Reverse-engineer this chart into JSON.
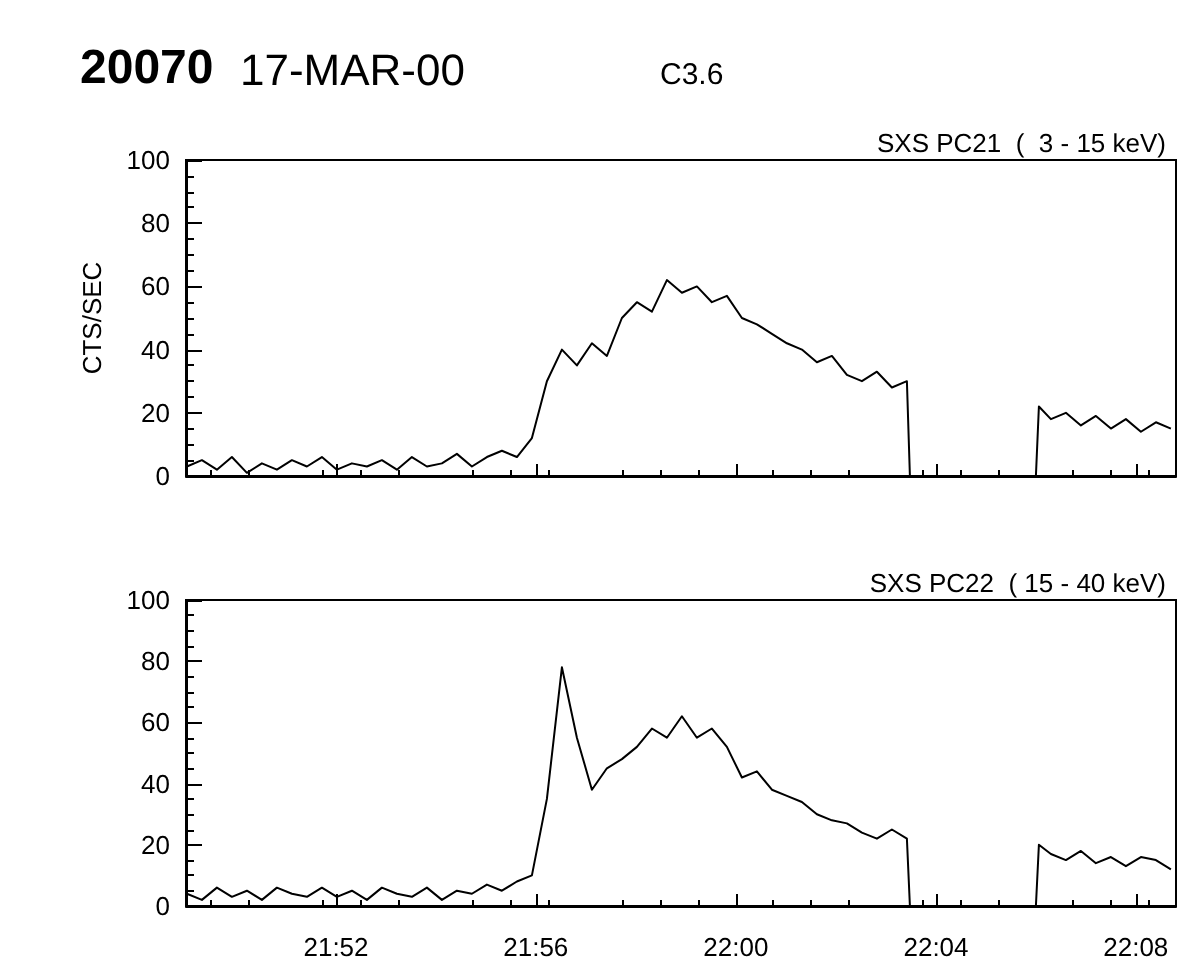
{
  "chart_data": [
    {
      "type": "line",
      "title": "SXS PC21  (  3 - 15 keV)",
      "ylabel": "CTS/SEC",
      "annotations": [
        "20070",
        "17-MAR-00",
        "C3.6"
      ],
      "tick_labels": "y",
      "grid": false,
      "marker": "none",
      "line_style": "solid",
      "x": [
        21.817,
        21.822,
        21.827,
        21.832,
        21.837,
        21.842,
        21.847,
        21.852,
        21.857,
        21.862,
        21.867,
        21.872,
        21.877,
        21.882,
        21.887,
        21.892,
        21.897,
        21.902,
        21.907,
        21.912,
        21.917,
        21.922,
        21.927,
        21.932,
        21.937,
        21.942,
        21.947,
        21.952,
        21.957,
        21.962,
        21.967,
        21.972,
        21.977,
        21.982,
        21.987,
        21.992,
        21.997,
        22.002,
        22.007,
        22.012,
        22.017,
        22.022,
        22.027,
        22.032,
        22.037,
        22.042,
        22.047,
        22.052,
        22.057,
        22.058,
        22.08,
        22.1,
        22.101,
        22.105,
        22.11,
        22.115,
        22.12,
        22.125,
        22.13,
        22.135,
        22.14,
        22.145
      ],
      "series": [
        {
          "color": "#000000",
          "values": [
            3,
            5,
            2,
            6,
            1,
            4,
            2,
            5,
            3,
            6,
            2,
            4,
            3,
            5,
            2,
            6,
            3,
            4,
            7,
            3,
            6,
            8,
            6,
            12,
            30,
            40,
            35,
            42,
            38,
            50,
            55,
            52,
            62,
            58,
            60,
            55,
            57,
            50,
            48,
            45,
            42,
            40,
            36,
            38,
            32,
            30,
            33,
            28,
            30,
            0,
            null,
            0,
            22,
            18,
            20,
            16,
            19,
            15,
            18,
            14,
            17,
            15
          ]
        }
      ],
      "xlim": [
        21.8167,
        22.1467
      ],
      "xticks": [
        {
          "value": 21.8667,
          "label": null
        },
        {
          "value": 21.9333,
          "label": null
        },
        {
          "value": 22,
          "label": null
        },
        {
          "value": 22.0667,
          "label": null
        },
        {
          "value": 22.1333,
          "label": null
        }
      ],
      "ylim": [
        0,
        100
      ],
      "yticks": [
        0,
        20,
        40,
        60,
        80,
        100
      ]
    },
    {
      "type": "line",
      "title": "SXS PC22  ( 15 - 40 keV)",
      "grid": false,
      "marker": "none",
      "line_style": "solid",
      "x": [
        21.817,
        21.822,
        21.827,
        21.832,
        21.837,
        21.842,
        21.847,
        21.852,
        21.857,
        21.862,
        21.867,
        21.872,
        21.877,
        21.882,
        21.887,
        21.892,
        21.897,
        21.902,
        21.907,
        21.912,
        21.917,
        21.922,
        21.927,
        21.932,
        21.937,
        21.942,
        21.947,
        21.952,
        21.957,
        21.962,
        21.967,
        21.972,
        21.977,
        21.982,
        21.987,
        21.992,
        21.997,
        22.002,
        22.007,
        22.012,
        22.017,
        22.022,
        22.027,
        22.032,
        22.037,
        22.042,
        22.047,
        22.052,
        22.057,
        22.058,
        22.08,
        22.1,
        22.101,
        22.105,
        22.11,
        22.115,
        22.12,
        22.125,
        22.13,
        22.135,
        22.14,
        22.145
      ],
      "series": [
        {
          "color": "#000000",
          "values": [
            4,
            2,
            6,
            3,
            5,
            2,
            6,
            4,
            3,
            6,
            3,
            5,
            2,
            6,
            4,
            3,
            6,
            2,
            5,
            4,
            7,
            5,
            8,
            10,
            35,
            78,
            55,
            38,
            45,
            48,
            52,
            58,
            55,
            62,
            55,
            58,
            52,
            42,
            44,
            38,
            36,
            34,
            30,
            28,
            27,
            24,
            22,
            25,
            22,
            0,
            null,
            0,
            20,
            17,
            15,
            18,
            14,
            16,
            13,
            16,
            15,
            12
          ]
        }
      ],
      "xlim": [
        21.8167,
        22.1467
      ],
      "xticks": [
        {
          "value": 21.8667,
          "label": "21:52"
        },
        {
          "value": 21.9333,
          "label": "21:56"
        },
        {
          "value": 22,
          "label": "22:00"
        },
        {
          "value": 22.0667,
          "label": "22:04"
        },
        {
          "value": 22.1333,
          "label": "22:08"
        }
      ],
      "ylim": [
        0,
        100
      ],
      "yticks": [
        0,
        20,
        40,
        60,
        80,
        100
      ]
    }
  ]
}
